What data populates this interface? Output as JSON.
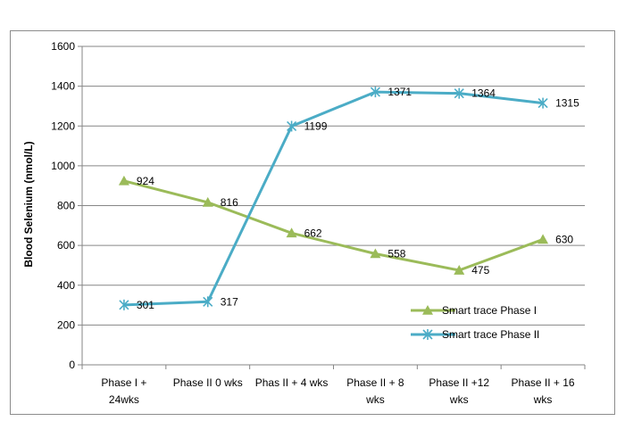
{
  "chart_data": {
    "type": "line",
    "title": "",
    "xlabel": "",
    "ylabel": "Blood Selenium (nmol/L)",
    "ylim": [
      0,
      1600
    ],
    "ytick_step": 200,
    "categories": [
      [
        "Phase I +",
        "24wks"
      ],
      [
        "Phase II 0 wks"
      ],
      [
        "Phas II + 4 wks"
      ],
      [
        "Phase II + 8",
        "wks"
      ],
      [
        "Phase II +12",
        "wks"
      ],
      [
        "Phase II + 16",
        "wks"
      ]
    ],
    "grid": true,
    "legend_position": "right",
    "series": [
      {
        "name": "Smart trace Phase I",
        "values": [
          924,
          816,
          662,
          558,
          475,
          630
        ],
        "color": "#9bbb59",
        "marker": "triangle"
      },
      {
        "name": "Smart trace Phase II",
        "values": [
          301,
          317,
          1199,
          1371,
          1364,
          1315
        ],
        "color": "#4bacc6",
        "marker": "star"
      }
    ]
  }
}
